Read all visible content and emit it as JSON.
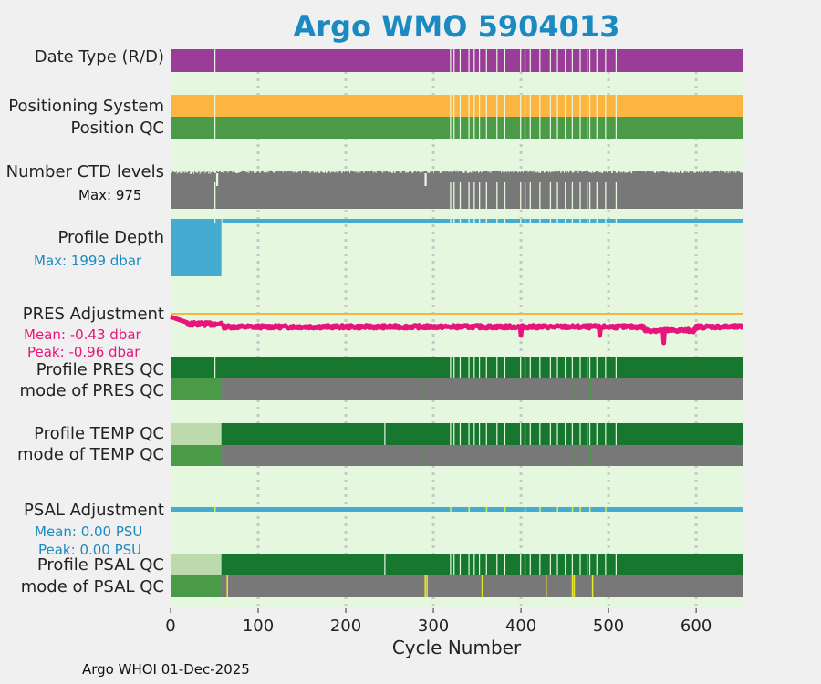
{
  "title": "Argo WMO 5904013",
  "footer": "Argo WHOI 01-Dec-2025",
  "colors": {
    "background": "#e6f7e0",
    "date_type": "#9a3d98",
    "positioning": "#fbb540",
    "good_qc": "#4a9a48",
    "dark_green": "#17772e",
    "light_green": "#bddaad",
    "gray": "#787878",
    "blue": "#44acd0",
    "pink": "#e8147c",
    "orange_line": "#f5b640",
    "yellow": "#e8e830",
    "gridline": "#c8c8c8",
    "title": "#1a8ac0"
  },
  "labels": {
    "date_type": "Date Type (R/D)",
    "positioning_system": "Positioning System",
    "position_qc": "Position QC",
    "ctd_levels": "Number CTD levels",
    "ctd_max": "Max: 975",
    "profile_depth": "Profile Depth",
    "depth_max": "Max: 1999 dbar",
    "pres_adjustment": "PRES Adjustment",
    "pres_mean": "Mean: -0.43 dbar",
    "pres_peak": "Peak: -0.96 dbar",
    "profile_pres_qc": "Profile PRES QC",
    "mode_pres_qc": "mode of PRES QC",
    "profile_temp_qc": "Profile TEMP QC",
    "mode_temp_qc": "mode of TEMP QC",
    "psal_adjustment": "PSAL Adjustment",
    "psal_mean": "Mean: 0.00 PSU",
    "psal_peak": "Peak: 0.00 PSU",
    "profile_psal_qc": "Profile PSAL QC",
    "mode_psal_qc": "mode of PSAL QC"
  },
  "chart_data": {
    "type": "heatmap",
    "xlabel": "Cycle Number",
    "xlim": [
      0,
      653
    ],
    "xticks": [
      0,
      100,
      200,
      300,
      400,
      500,
      600
    ],
    "tracks": [
      {
        "name": "Date Type (R/D)",
        "color": "date_type",
        "gaps": [
          50,
          319,
          323,
          330,
          340,
          346,
          352,
          360,
          372,
          381,
          399,
          404,
          410,
          421,
          433,
          441,
          450,
          458,
          467,
          475,
          478,
          486,
          496,
          508
        ]
      },
      {
        "name": "Positioning System",
        "color": "positioning",
        "gaps": [
          50,
          319,
          323,
          330,
          340,
          346,
          352,
          360,
          372,
          381,
          399,
          404,
          410,
          421,
          433,
          441,
          450,
          458,
          467,
          475,
          478,
          486,
          496,
          508
        ]
      },
      {
        "name": "Position QC",
        "color": "good_qc",
        "gaps": [
          50,
          319,
          323,
          330,
          340,
          346,
          352,
          360,
          372,
          381,
          399,
          404,
          410,
          421,
          433,
          441,
          450,
          458,
          467,
          475,
          478,
          486,
          496,
          508
        ]
      },
      {
        "name": "Profile PRES QC",
        "color": "dark_green",
        "gaps": [
          50,
          319,
          323,
          330,
          340,
          346,
          352,
          360,
          372,
          381,
          399,
          404,
          410,
          421,
          433,
          441,
          450,
          458,
          467,
          475,
          478,
          486,
          496,
          508
        ]
      },
      {
        "name": "Profile TEMP QC",
        "color": "dark_green",
        "first_cycles_color": "light_green",
        "first_cycles_end": 58,
        "gaps": [
          244,
          319,
          323,
          330,
          340,
          346,
          352,
          360,
          372,
          381,
          399,
          404,
          410,
          421,
          433,
          441,
          450,
          458,
          467,
          475,
          478,
          486,
          496,
          508
        ]
      },
      {
        "name": "Profile PSAL QC",
        "color": "dark_green",
        "first_cycles_color": "light_green",
        "first_cycles_end": 58,
        "gaps": [
          244,
          319,
          323,
          330,
          340,
          346,
          352,
          360,
          372,
          381,
          399,
          404,
          410,
          421,
          433,
          441,
          450,
          458,
          467,
          475,
          478,
          486,
          496,
          508
        ]
      }
    ],
    "mode_tracks": [
      {
        "name": "mode of PRES QC",
        "good_until": 58,
        "rest": "gray",
        "accents": [
          290,
          461,
          479
        ]
      },
      {
        "name": "mode of TEMP QC",
        "good_until": 58,
        "rest": "gray",
        "accents": [
          290,
          461,
          479
        ]
      },
      {
        "name": "mode of PSAL QC",
        "good_until": 58,
        "rest": "gray",
        "yellow_marks": [
          64,
          290,
          292,
          355,
          428,
          458,
          460,
          481
        ]
      }
    ],
    "ctd_levels": {
      "max": 975,
      "typical": 960,
      "low_cycles": [
        52,
        53,
        290,
        291
      ]
    },
    "profile_depth": {
      "max": 1999,
      "shallow_until": 58,
      "deep_from": 59
    },
    "pres_adjustment": {
      "mean": -0.43,
      "peak": -0.96,
      "zero_line": 0
    },
    "psal_adjustment": {
      "mean": 0.0,
      "peak": 0.0
    }
  }
}
